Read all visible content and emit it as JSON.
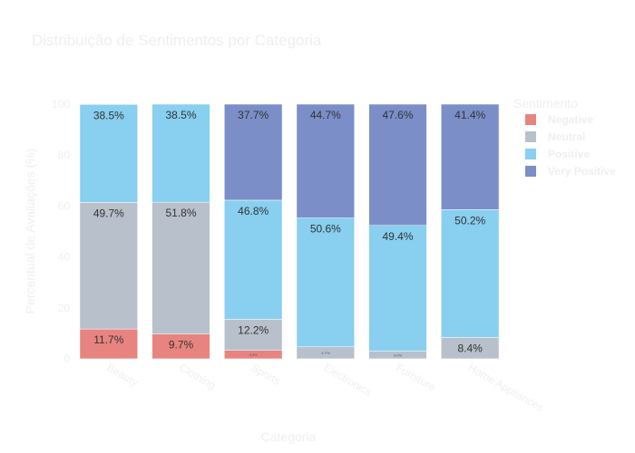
{
  "chart_data": {
    "type": "bar",
    "stacked": true,
    "title": "Distribuição de Sentimentos por Categoria",
    "xlabel": "Categoria",
    "ylabel": "Percentual de Avaliações (%)",
    "ylim": [
      0,
      100
    ],
    "yticks": [
      0,
      20,
      40,
      60,
      80,
      100
    ],
    "categories": [
      "Beauty",
      "Clothing",
      "Sports",
      "Electronics",
      "Furniture",
      "Home Appliances"
    ],
    "legend_title": "Sentimento",
    "legend_position": "right",
    "series": [
      {
        "name": "Negative",
        "color": "#e88480",
        "values": [
          11.7,
          9.7,
          3.3,
          0,
          0,
          0
        ],
        "labels": [
          "11.7%",
          "9.7%",
          "3.3%",
          "",
          "",
          ""
        ]
      },
      {
        "name": "Neutral",
        "color": "#b8c0cb",
        "values": [
          49.7,
          51.8,
          12.2,
          4.7,
          3.0,
          8.4
        ],
        "labels": [
          "49.7%",
          "51.8%",
          "12.2%",
          "4.7%",
          "3.0%",
          "8.4%"
        ]
      },
      {
        "name": "Positive",
        "color": "#88cff0",
        "values": [
          38.5,
          38.5,
          46.8,
          50.6,
          49.4,
          50.2
        ],
        "labels": [
          "38.5%",
          "38.5%",
          "46.8%",
          "50.6%",
          "49.4%",
          "50.2%"
        ]
      },
      {
        "name": "Very Positive",
        "color": "#7b8ec8",
        "values": [
          0,
          0,
          37.7,
          44.7,
          47.6,
          41.4
        ],
        "labels": [
          "",
          "",
          "37.7%",
          "44.7%",
          "47.6%",
          "41.4%"
        ]
      }
    ]
  }
}
